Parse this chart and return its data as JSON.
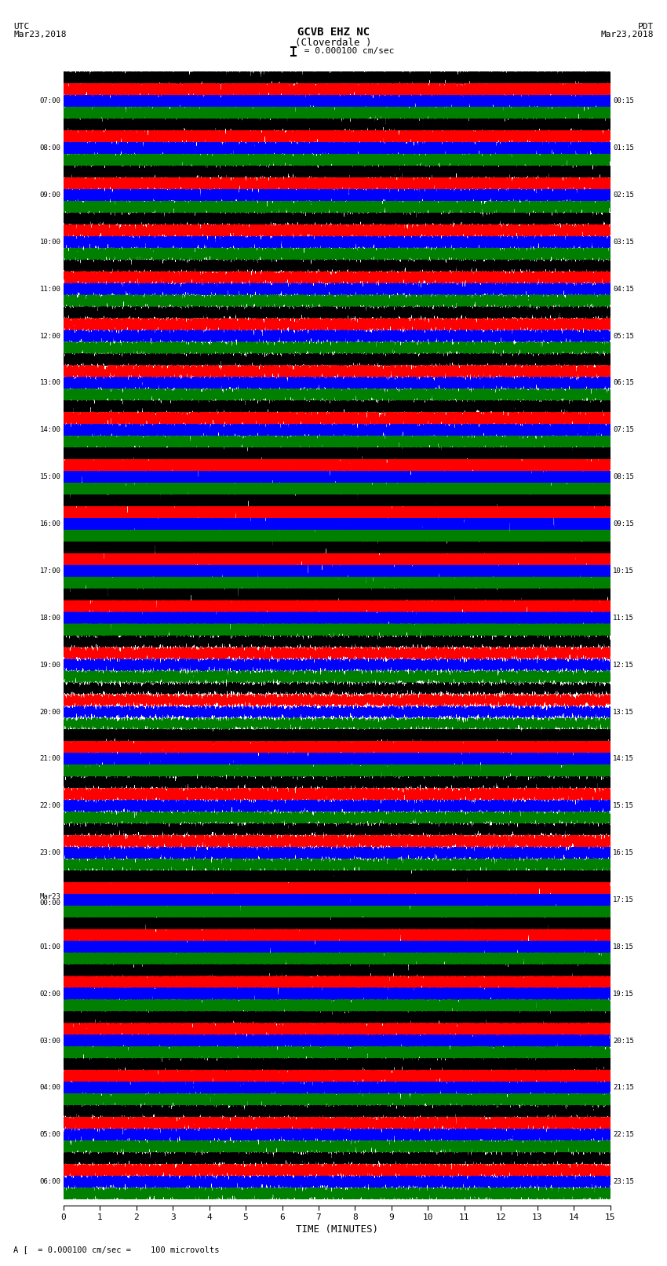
{
  "title_line1": "GCVB EHZ NC",
  "title_line2": "(Cloverdale )",
  "scale_label": " = 0.000100 cm/sec",
  "utc_label": "UTC\nMar23,2018",
  "pdt_label": "PDT\nMar23,2018",
  "footer_label": "A [  = 0.000100 cm/sec =    100 microvolts",
  "xlabel": "TIME (MINUTES)",
  "x_ticks": [
    0,
    1,
    2,
    3,
    4,
    5,
    6,
    7,
    8,
    9,
    10,
    11,
    12,
    13,
    14,
    15
  ],
  "left_times": [
    "07:00",
    "08:00",
    "09:00",
    "10:00",
    "11:00",
    "12:00",
    "13:00",
    "14:00",
    "15:00",
    "16:00",
    "17:00",
    "18:00",
    "19:00",
    "20:00",
    "21:00",
    "22:00",
    "23:00",
    "Mar23\n00:00",
    "01:00",
    "02:00",
    "03:00",
    "04:00",
    "05:00",
    "06:00"
  ],
  "right_times": [
    "00:15",
    "01:15",
    "02:15",
    "03:15",
    "04:15",
    "05:15",
    "06:15",
    "07:15",
    "08:15",
    "09:15",
    "10:15",
    "11:15",
    "12:15",
    "13:15",
    "14:15",
    "15:15",
    "16:15",
    "17:15",
    "18:15",
    "19:15",
    "20:15",
    "21:15",
    "22:15",
    "23:15"
  ],
  "colors": [
    "black",
    "red",
    "blue",
    "green"
  ],
  "bg_color": "white",
  "num_hours": 24,
  "traces_per_hour": 4,
  "minutes": 15,
  "sample_rate": 40,
  "fig_width": 8.5,
  "fig_height": 16.13,
  "dpi": 100
}
